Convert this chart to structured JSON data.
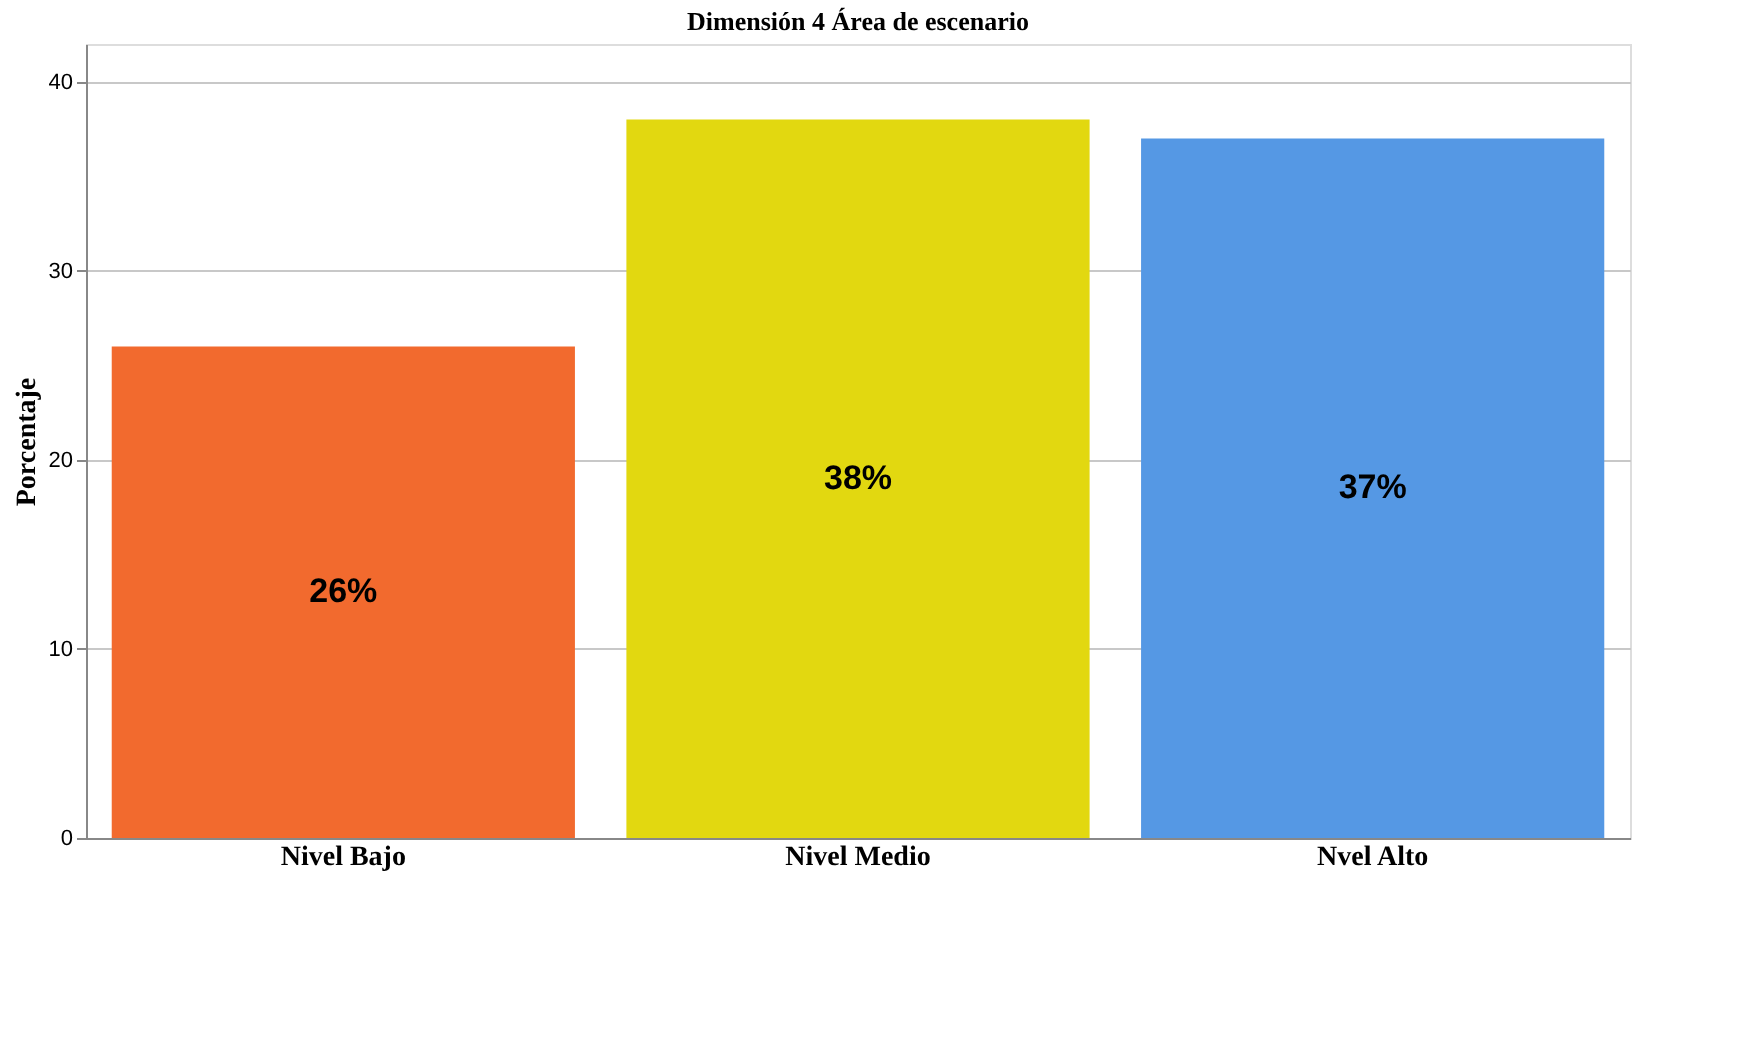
{
  "chart_data": {
    "type": "bar",
    "title": "Dimensión 4 Área de escenario",
    "ylabel": "Porcentaje",
    "categories": [
      "Nivel Bajo",
      "Nivel Medio",
      "Nvel Alto"
    ],
    "values": [
      26,
      38,
      37
    ],
    "colors": [
      "#f26a2e",
      "#e2d810",
      "#5598e4"
    ],
    "value_labels": [
      "26%",
      "38%",
      "37%"
    ],
    "ylim": [
      0,
      42
    ],
    "yticks": [
      0,
      10,
      20,
      30,
      40
    ],
    "grid": "y"
  }
}
